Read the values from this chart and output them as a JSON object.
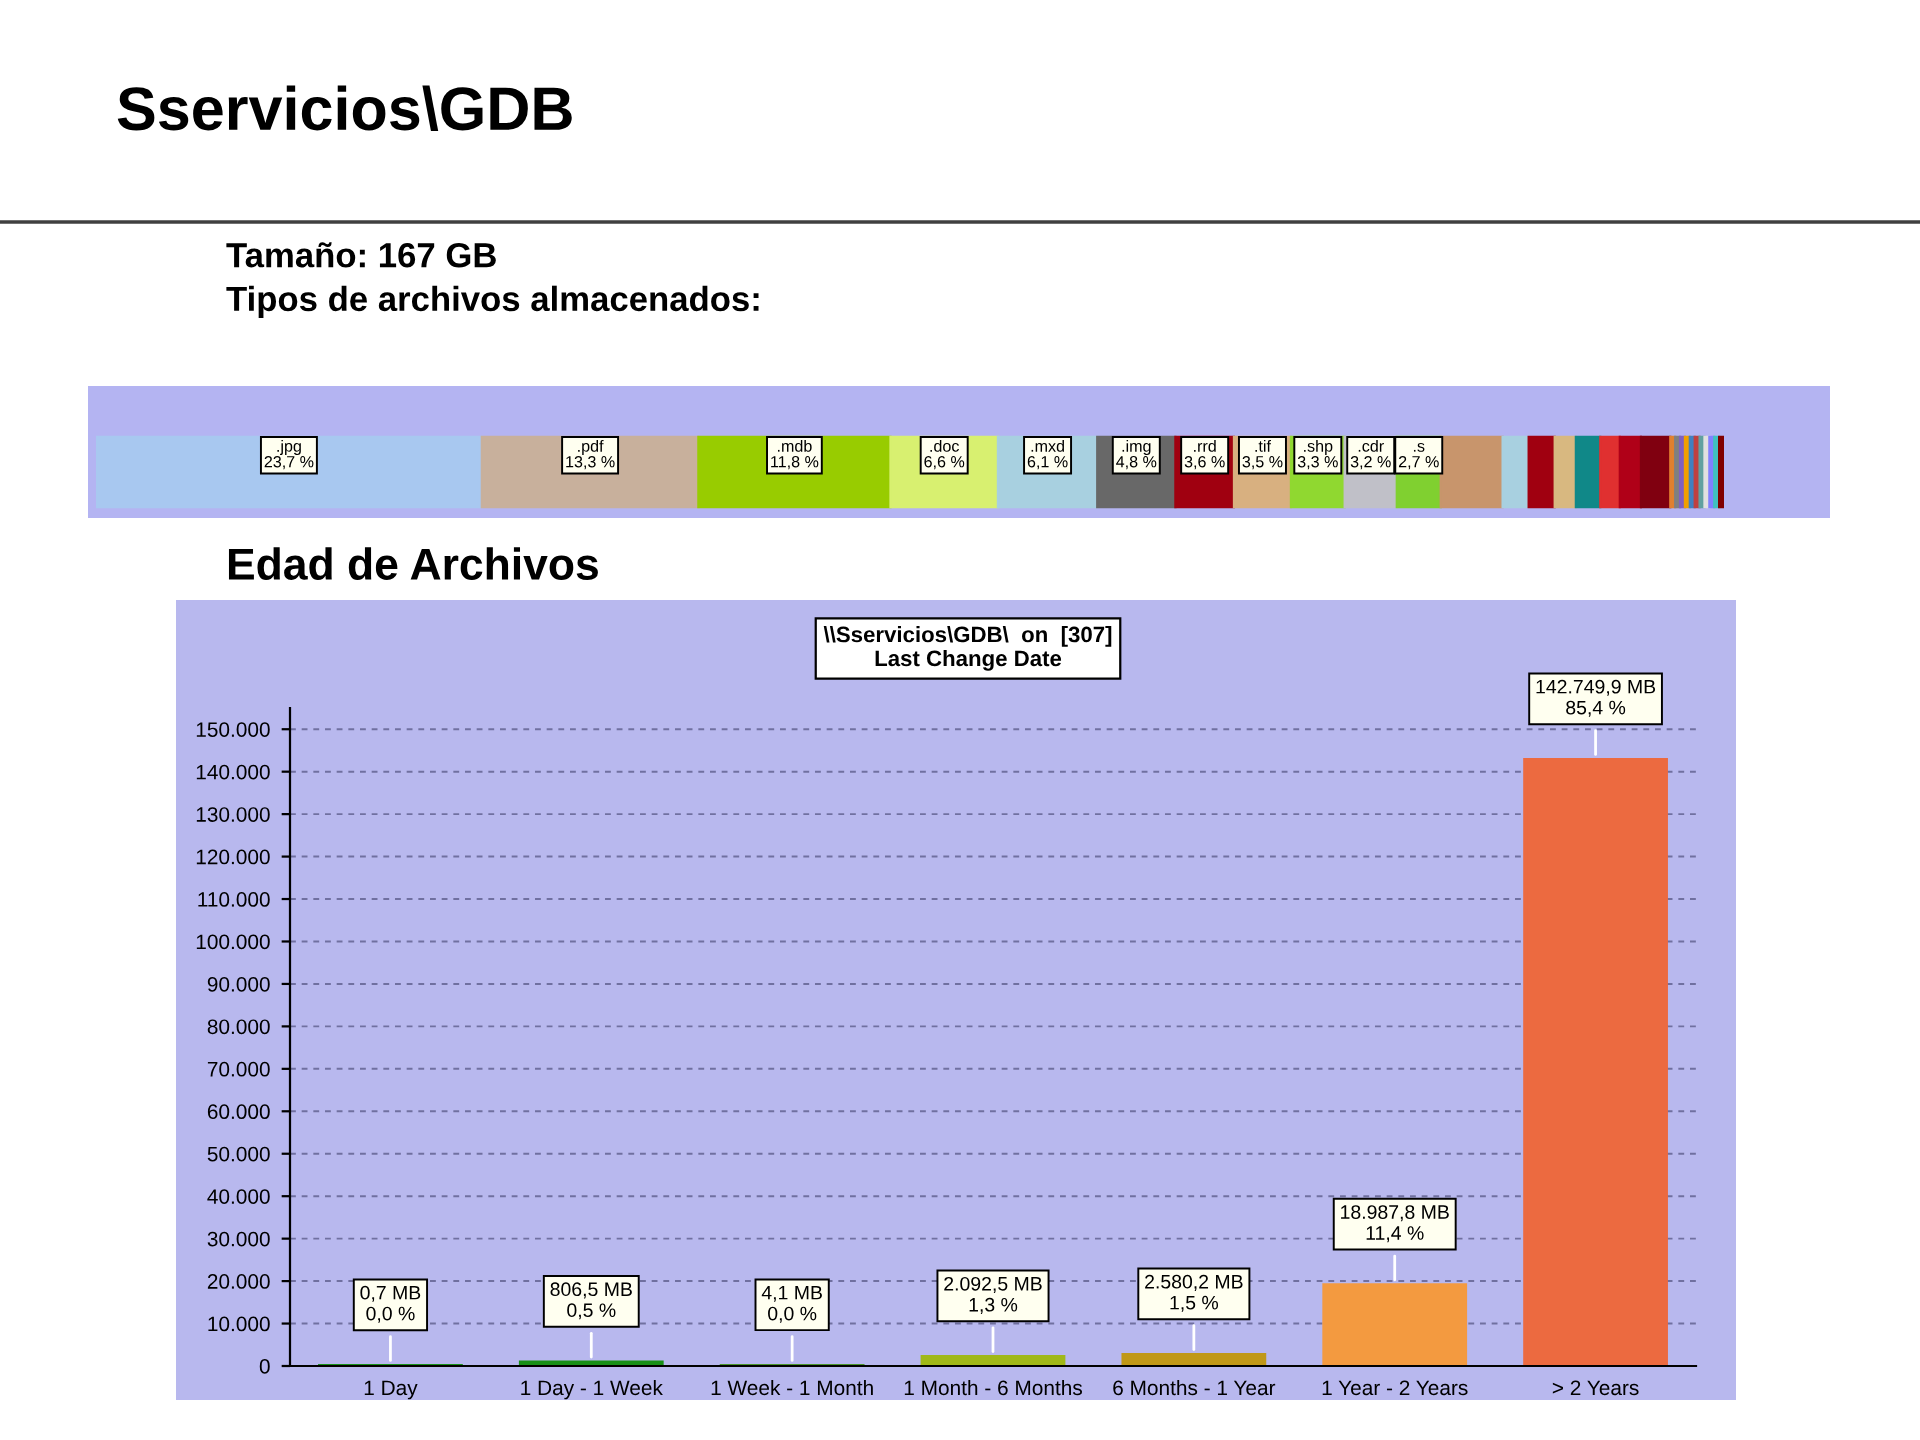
{
  "chart_data": [
    {
      "type": "bar",
      "orientation": "horizontal",
      "stacked": true,
      "tick_labels": false,
      "title": "Sservicios\\GDB",
      "subtitle": "Tamaño: 167 GB\nTipos de archivos almacenados:",
      "categories": [
        null
      ],
      "series": [
        {
          "name": ".jpg",
          "color": "#a8c8f0",
          "values": [
            23.7
          ],
          "value_labels": [
            "23,7 %"
          ]
        },
        {
          "name": ".pdf",
          "color": "#c8b09c",
          "values": [
            13.3
          ],
          "value_labels": [
            "13,3 %"
          ]
        },
        {
          "name": ".mdb",
          "color": "#98cc00",
          "values": [
            11.8
          ],
          "value_labels": [
            "11,8 %"
          ]
        },
        {
          "name": ".doc",
          "color": "#d8f070",
          "values": [
            6.6
          ],
          "value_labels": [
            "6,6 %"
          ]
        },
        {
          "name": ".mxd",
          "color": "#a8d0e0",
          "values": [
            6.1
          ],
          "value_labels": [
            "6,1 %"
          ]
        },
        {
          "name": ".img",
          "color": "#686868",
          "values": [
            4.8
          ],
          "value_labels": [
            "4,8 %"
          ]
        },
        {
          "name": ".rrd",
          "color": "#a00010",
          "values": [
            3.6
          ],
          "value_labels": [
            "3,6 %"
          ]
        },
        {
          "name": ".tif",
          "color": "#d8b080",
          "values": [
            3.5
          ],
          "value_labels": [
            "3,5 %"
          ]
        },
        {
          "name": ".shp",
          "color": "#90d830",
          "values": [
            3.3
          ],
          "value_labels": [
            "3,3 %"
          ]
        },
        {
          "name": ".cdr",
          "color": "#c0c0c8",
          "values": [
            3.2
          ],
          "value_labels": [
            "3,2 %"
          ]
        },
        {
          "name": ".s",
          "color": "#80d030",
          "values": [
            2.7
          ],
          "value_labels": [
            "2,7 %"
          ]
        },
        {
          "color": "#c8956c",
          "values": [
            3.8
          ]
        },
        {
          "color": "#a8d0e0",
          "values": [
            1.6
          ]
        },
        {
          "color": "#a00010",
          "values": [
            1.6
          ]
        },
        {
          "color": "#d8b880",
          "values": [
            1.3
          ]
        },
        {
          "color": "#108888",
          "values": [
            1.5
          ]
        },
        {
          "color": "#e03030",
          "values": [
            1.2
          ]
        },
        {
          "color": "#b00018",
          "values": [
            1.3
          ]
        },
        {
          "color": "#800010",
          "values": [
            1.8
          ]
        },
        {
          "color": "#e08030",
          "values": [
            0.3
          ]
        },
        {
          "color": "#808080",
          "values": [
            0.3
          ]
        },
        {
          "color": "#8060c0",
          "values": [
            0.3
          ]
        },
        {
          "color": "#f0a000",
          "values": [
            0.3
          ]
        },
        {
          "color": "#4080c0",
          "values": [
            0.3
          ]
        },
        {
          "color": "#c04040",
          "values": [
            0.3
          ]
        },
        {
          "color": "#60a0a0",
          "values": [
            0.3
          ]
        },
        {
          "color": "#e0e0e0",
          "values": [
            0.3
          ]
        },
        {
          "color": "#8080ff",
          "values": [
            0.3
          ]
        },
        {
          "color": "#40c0c0",
          "values": [
            0.3
          ]
        },
        {
          "color": "#800000",
          "values": [
            0.3
          ]
        }
      ]
    },
    {
      "type": "bar",
      "title": "Edad de Archivos",
      "subtitle": "\\\\Sservicios\\GDB\\  on  [307]\nLast Change Date",
      "categories": [
        "1 Day",
        "1 Day - 1 Week",
        "1 Week - 1 Month",
        "1 Month - 6 Months",
        "6 Months - 1 Year",
        "1 Year - 2 Years",
        "> 2 Years"
      ],
      "values": [
        0.7,
        806.5,
        4.1,
        2092.5,
        2580.2,
        18987.8,
        142749.9
      ],
      "colors": [
        "#189018",
        "#189018",
        "#4a9428",
        "#a0b818",
        "#c09818",
        "#f39a40",
        "#ec6a40"
      ],
      "value_labels": [
        "0,7 MB\n0,0 %",
        "806,5 MB\n0,5 %",
        "4,1 MB\n0,0 %",
        "2.092,5 MB\n1,3 %",
        "2.580,2 MB\n1,5 %",
        "18.987,8 MB\n11,4 %",
        "142.749,9 MB\n85,4 %"
      ],
      "ylim": [
        0,
        155000
      ],
      "yticks": [
        0,
        {
          "value": 10000,
          "label": "10.000"
        },
        {
          "value": 20000,
          "label": "20.000"
        },
        {
          "value": 30000,
          "label": "30.000"
        },
        {
          "value": 40000,
          "label": "40.000"
        },
        {
          "value": 50000,
          "label": "50.000"
        },
        {
          "value": 60000,
          "label": "60.000"
        },
        {
          "value": 70000,
          "label": "70.000"
        },
        {
          "value": 80000,
          "label": "80.000"
        },
        {
          "value": 90000,
          "label": "90.000"
        },
        {
          "value": 100000,
          "label": "100.000"
        },
        {
          "value": 110000,
          "label": "110.000"
        },
        {
          "value": 120000,
          "label": "120.000"
        },
        {
          "value": 130000,
          "label": "130.000"
        },
        {
          "value": 140000,
          "label": "140.000"
        },
        {
          "value": 150000,
          "label": "150.000"
        }
      ],
      "grid": "y"
    }
  ]
}
